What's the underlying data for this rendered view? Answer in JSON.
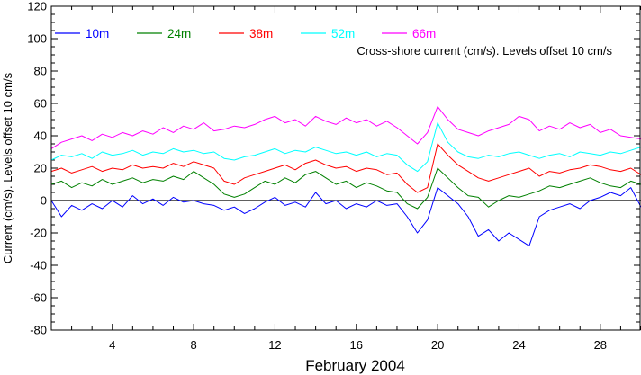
{
  "chart_data": {
    "type": "line",
    "annotation": "Cross-shore current (cm/s). Levels offset 10 cm/s",
    "xlabel": "February 2004",
    "ylabel": "Current (cm/s). Levels offset 10 cm/s",
    "xlim": [
      1,
      30
    ],
    "ylim": [
      -80,
      120
    ],
    "xticks": [
      4,
      8,
      12,
      16,
      20,
      24,
      28
    ],
    "yticks": [
      -80,
      -60,
      -40,
      -20,
      0,
      20,
      40,
      60,
      80,
      100,
      120
    ],
    "zero_line": 0,
    "grid": false,
    "legend_position": "top-left",
    "series": [
      {
        "name": "10m",
        "color": "#0000ff",
        "x": [
          1,
          1.5,
          2,
          2.5,
          3,
          3.5,
          4,
          4.5,
          5,
          5.5,
          6,
          6.5,
          7,
          7.5,
          8,
          8.5,
          9,
          9.5,
          10,
          10.5,
          11,
          11.5,
          12,
          12.5,
          13,
          13.5,
          14,
          14.5,
          15,
          15.5,
          16,
          16.5,
          17,
          17.5,
          18,
          18.5,
          19,
          19.5,
          20,
          20.5,
          21,
          21.5,
          22,
          22.5,
          23,
          23.5,
          24,
          24.5,
          25,
          25.5,
          26,
          26.5,
          27,
          27.5,
          28,
          28.5,
          29,
          29.5,
          30
        ],
        "y": [
          0,
          -10,
          -3,
          -6,
          -2,
          -5,
          0,
          -4,
          3,
          -2,
          1,
          -3,
          2,
          -1,
          0,
          -2,
          -3,
          -6,
          -4,
          -8,
          -5,
          -1,
          2,
          -3,
          -1,
          -4,
          5,
          -2,
          0,
          -5,
          -2,
          -4,
          0,
          -3,
          -2,
          -10,
          -20,
          -12,
          8,
          3,
          -2,
          -10,
          -22,
          -18,
          -25,
          -20,
          -24,
          -28,
          -10,
          -6,
          -4,
          -2,
          -5,
          0,
          2,
          5,
          3,
          8,
          -4
        ]
      },
      {
        "name": "24m",
        "color": "#008000",
        "x": [
          1,
          1.5,
          2,
          2.5,
          3,
          3.5,
          4,
          4.5,
          5,
          5.5,
          6,
          6.5,
          7,
          7.5,
          8,
          8.5,
          9,
          9.5,
          10,
          10.5,
          11,
          11.5,
          12,
          12.5,
          13,
          13.5,
          14,
          14.5,
          15,
          15.5,
          16,
          16.5,
          17,
          17.5,
          18,
          18.5,
          19,
          19.5,
          20,
          20.5,
          21,
          21.5,
          22,
          22.5,
          23,
          23.5,
          24,
          24.5,
          25,
          25.5,
          26,
          26.5,
          27,
          27.5,
          28,
          28.5,
          29,
          29.5,
          30
        ],
        "y": [
          10,
          12,
          8,
          11,
          9,
          13,
          10,
          12,
          14,
          11,
          13,
          12,
          15,
          13,
          18,
          14,
          10,
          4,
          2,
          4,
          8,
          12,
          10,
          14,
          11,
          16,
          18,
          14,
          10,
          12,
          8,
          11,
          9,
          6,
          5,
          -2,
          -5,
          2,
          20,
          14,
          8,
          3,
          2,
          -4,
          0,
          3,
          2,
          4,
          6,
          9,
          8,
          10,
          12,
          14,
          11,
          9,
          8,
          12,
          10
        ]
      },
      {
        "name": "38m",
        "color": "#ff0000",
        "x": [
          1,
          1.5,
          2,
          2.5,
          3,
          3.5,
          4,
          4.5,
          5,
          5.5,
          6,
          6.5,
          7,
          7.5,
          8,
          8.5,
          9,
          9.5,
          10,
          10.5,
          11,
          11.5,
          12,
          12.5,
          13,
          13.5,
          14,
          14.5,
          15,
          15.5,
          16,
          16.5,
          17,
          17.5,
          18,
          18.5,
          19,
          19.5,
          20,
          20.5,
          21,
          21.5,
          22,
          22.5,
          23,
          23.5,
          24,
          24.5,
          25,
          25.5,
          26,
          26.5,
          27,
          27.5,
          28,
          28.5,
          29,
          29.5,
          30
        ],
        "y": [
          18,
          20,
          17,
          19,
          21,
          18,
          20,
          19,
          22,
          20,
          21,
          20,
          23,
          21,
          24,
          22,
          20,
          12,
          10,
          14,
          16,
          18,
          20,
          22,
          19,
          23,
          25,
          22,
          20,
          21,
          18,
          20,
          19,
          16,
          17,
          10,
          5,
          8,
          35,
          28,
          22,
          18,
          14,
          12,
          14,
          16,
          18,
          20,
          15,
          18,
          17,
          19,
          20,
          22,
          21,
          19,
          18,
          20,
          16
        ]
      },
      {
        "name": "52m",
        "color": "#00ffff",
        "x": [
          1,
          1.5,
          2,
          2.5,
          3,
          3.5,
          4,
          4.5,
          5,
          5.5,
          6,
          6.5,
          7,
          7.5,
          8,
          8.5,
          9,
          9.5,
          10,
          10.5,
          11,
          11.5,
          12,
          12.5,
          13,
          13.5,
          14,
          14.5,
          15,
          15.5,
          16,
          16.5,
          17,
          17.5,
          18,
          18.5,
          19,
          19.5,
          20,
          20.5,
          21,
          21.5,
          22,
          22.5,
          23,
          23.5,
          24,
          24.5,
          25,
          25.5,
          26,
          26.5,
          27,
          27.5,
          28,
          28.5,
          29,
          29.5,
          30
        ],
        "y": [
          25,
          28,
          27,
          29,
          26,
          30,
          28,
          29,
          31,
          28,
          30,
          29,
          32,
          30,
          31,
          29,
          30,
          26,
          25,
          27,
          28,
          30,
          32,
          29,
          31,
          30,
          33,
          31,
          29,
          30,
          28,
          30,
          27,
          29,
          28,
          22,
          18,
          24,
          48,
          36,
          30,
          27,
          26,
          28,
          27,
          29,
          30,
          28,
          26,
          28,
          29,
          27,
          30,
          29,
          28,
          30,
          29,
          31,
          33
        ]
      },
      {
        "name": "66m",
        "color": "#ff00ff",
        "x": [
          1,
          1.5,
          2,
          2.5,
          3,
          3.5,
          4,
          4.5,
          5,
          5.5,
          6,
          6.5,
          7,
          7.5,
          8,
          8.5,
          9,
          9.5,
          10,
          10.5,
          11,
          11.5,
          12,
          12.5,
          13,
          13.5,
          14,
          14.5,
          15,
          15.5,
          16,
          16.5,
          17,
          17.5,
          18,
          18.5,
          19,
          19.5,
          20,
          20.5,
          21,
          21.5,
          22,
          22.5,
          23,
          23.5,
          24,
          24.5,
          25,
          25.5,
          26,
          26.5,
          27,
          27.5,
          28,
          28.5,
          29,
          29.5,
          30
        ],
        "y": [
          32,
          36,
          38,
          40,
          37,
          41,
          39,
          42,
          40,
          43,
          41,
          45,
          42,
          46,
          44,
          48,
          43,
          44,
          46,
          45,
          47,
          50,
          52,
          48,
          50,
          46,
          52,
          49,
          47,
          51,
          48,
          50,
          46,
          49,
          45,
          40,
          35,
          42,
          58,
          50,
          44,
          42,
          40,
          43,
          45,
          47,
          52,
          50,
          43,
          46,
          44,
          48,
          45,
          47,
          42,
          44,
          40,
          39,
          38
        ]
      }
    ]
  }
}
